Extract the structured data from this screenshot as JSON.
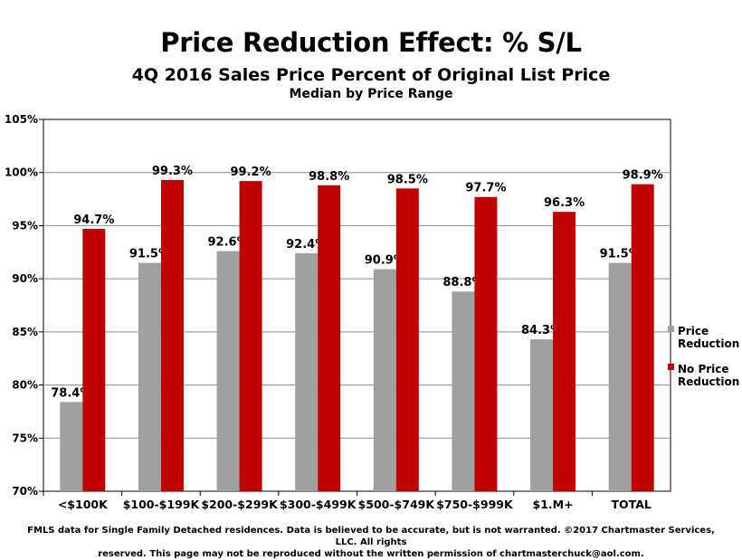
{
  "title": "Price Reduction Effect: % S/L",
  "subtitle": "4Q 2016 Sales Price Percent of Original List  Price",
  "subtitle2": "Median by Price Range",
  "footer": {
    "line1": "FMLS data for Single Family Detached residences.  Data is believed to be accurate, but is not warranted.  ©2017  Chartmaster Services, LLC.  All rights",
    "line2": "reserved. This page may not be reproduced without the written permission of chartmasterchuck@aol.com."
  },
  "chart_data": {
    "type": "bar",
    "categories": [
      "<$100K",
      "$100-$199K",
      "$200-$299K",
      "$300-$499K",
      "$500-$749K",
      "$750-$999K",
      "$1.M+",
      "TOTAL"
    ],
    "series": [
      {
        "name": "Price Reduction",
        "legend_lines": [
          "Price",
          "Reduction"
        ],
        "color": "#a0a0a0",
        "values": [
          78.4,
          91.5,
          92.6,
          92.4,
          90.9,
          88.8,
          84.3,
          91.5
        ],
        "labels": [
          "78.4%",
          "91.5%",
          "92.6%",
          "92.4%",
          "90.9%",
          "88.8%",
          "84.3%",
          "91.5%"
        ]
      },
      {
        "name": "No Price Reduction",
        "legend_lines": [
          "No Price",
          "Reduction"
        ],
        "color": "#c00000",
        "values": [
          94.7,
          99.3,
          99.2,
          98.8,
          98.5,
          97.7,
          96.3,
          98.9
        ],
        "labels": [
          "94.7%",
          "99.3%",
          "99.2%",
          "98.8%",
          "98.5%",
          "97.7%",
          "96.3%",
          "98.9%"
        ]
      }
    ],
    "ylim": [
      70,
      105
    ],
    "yticks": [
      70,
      75,
      80,
      85,
      90,
      95,
      100,
      105
    ],
    "ytick_labels": [
      "70%",
      "75%",
      "80%",
      "85%",
      "90%",
      "95%",
      "100%",
      "105%"
    ],
    "grid": true,
    "legend": "right"
  }
}
